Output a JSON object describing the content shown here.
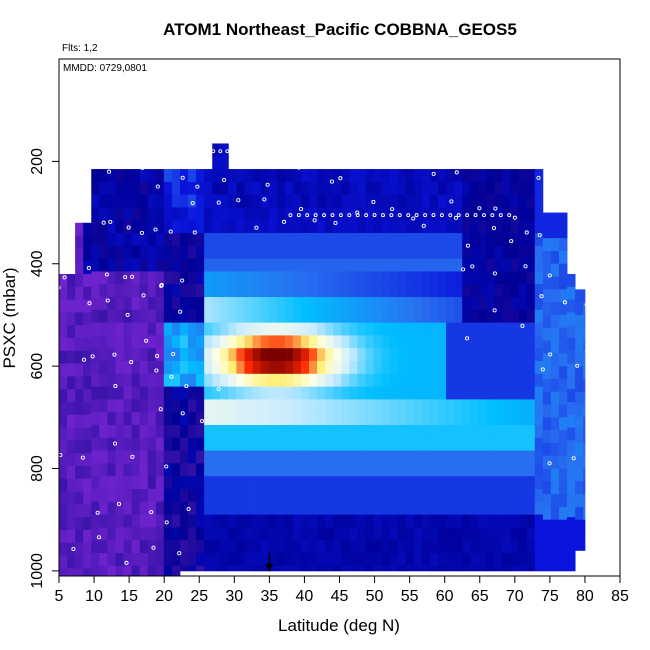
{
  "chart_data": {
    "type": "heatmap",
    "title": "ATOM1 Northeast_Pacific COBBNA_GEOS5",
    "subtitle": "Flts: 1,2",
    "annotation": "MMDD: 0729,0801",
    "xlabel": "Latitude (deg N)",
    "ylabel": "PSXC (mbar)",
    "xlim": [
      5,
      85
    ],
    "ylim": [
      1010,
      0
    ],
    "y_axis_reversed": true,
    "x_ticks": [
      5,
      10,
      15,
      20,
      25,
      30,
      35,
      40,
      45,
      50,
      55,
      60,
      65,
      70,
      75,
      80,
      85
    ],
    "y_ticks": [
      200,
      400,
      600,
      800,
      1000
    ],
    "grid": false,
    "colorscale": [
      "#8a2be2",
      "#0000a0",
      "#0000ff",
      "#1e90ff",
      "#00bfff",
      "#ffffff",
      "#ffff99",
      "#ff0000",
      "#8b0000"
    ],
    "marker": {
      "x": 35,
      "y": 1000,
      "symbol": "down-arrow"
    },
    "sample_points_note": "white open circles mark sampled locations"
  }
}
